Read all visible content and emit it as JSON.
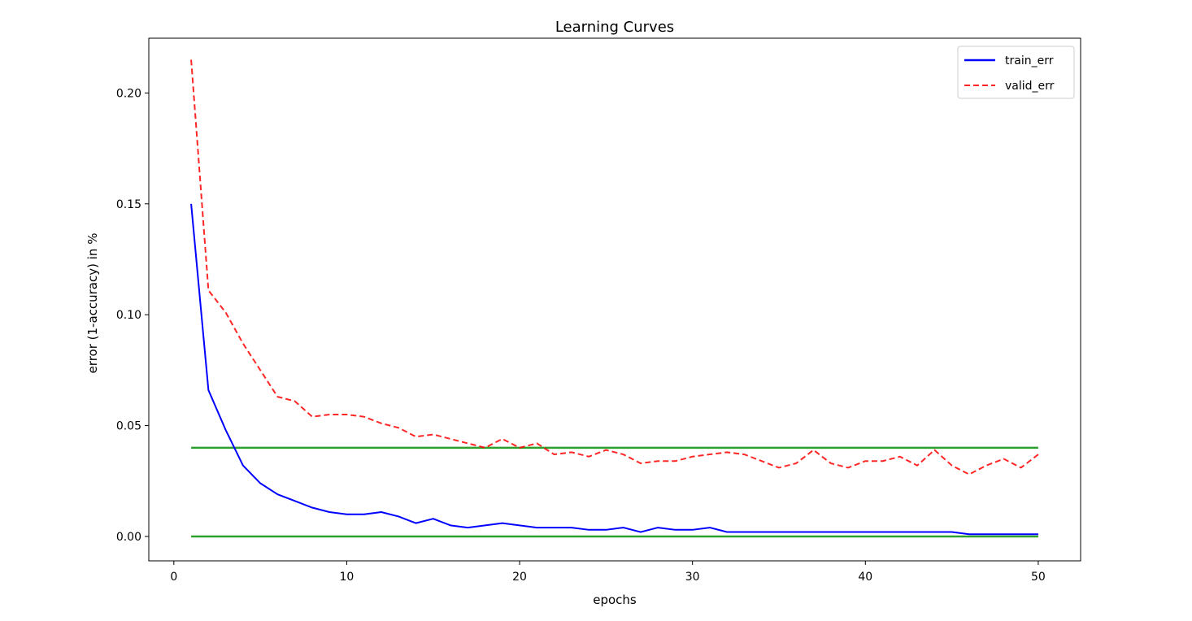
{
  "chart_data": {
    "type": "line",
    "title": "Learning Curves",
    "xlabel": "epochs",
    "ylabel": "error (1-accuracy) in %",
    "xlim": [
      -1.45,
      52.45
    ],
    "ylim": [
      -0.011,
      0.2247
    ],
    "xticks": [
      0,
      10,
      20,
      30,
      40,
      50
    ],
    "xtick_labels": [
      "0",
      "10",
      "20",
      "30",
      "40",
      "50"
    ],
    "yticks": [
      0.0,
      0.05,
      0.1,
      0.15,
      0.2
    ],
    "ytick_labels": [
      "0.00",
      "0.05",
      "0.10",
      "0.15",
      "0.20"
    ],
    "grid": false,
    "legend_position": "top-right",
    "x": [
      1,
      2,
      3,
      4,
      5,
      6,
      7,
      8,
      9,
      10,
      11,
      12,
      13,
      14,
      15,
      16,
      17,
      18,
      19,
      20,
      21,
      22,
      23,
      24,
      25,
      26,
      27,
      28,
      29,
      30,
      31,
      32,
      33,
      34,
      35,
      36,
      37,
      38,
      39,
      40,
      41,
      42,
      43,
      44,
      45,
      46,
      47,
      48,
      49,
      50
    ],
    "series": [
      {
        "name": "train_err",
        "color": "#0000ff",
        "style": "solid",
        "values": [
          0.15,
          0.066,
          0.048,
          0.032,
          0.024,
          0.019,
          0.016,
          0.013,
          0.011,
          0.01,
          0.01,
          0.011,
          0.009,
          0.006,
          0.008,
          0.005,
          0.004,
          0.005,
          0.006,
          0.005,
          0.004,
          0.004,
          0.004,
          0.003,
          0.003,
          0.004,
          0.002,
          0.004,
          0.003,
          0.003,
          0.004,
          0.002,
          0.002,
          0.002,
          0.002,
          0.002,
          0.002,
          0.002,
          0.002,
          0.002,
          0.002,
          0.002,
          0.002,
          0.002,
          0.002,
          0.001,
          0.001,
          0.001,
          0.001,
          0.001
        ]
      },
      {
        "name": "valid_err",
        "color": "#ff0000",
        "style": "dashed",
        "values": [
          0.215,
          0.111,
          0.101,
          0.087,
          0.075,
          0.063,
          0.061,
          0.054,
          0.055,
          0.055,
          0.054,
          0.051,
          0.049,
          0.045,
          0.046,
          0.044,
          0.042,
          0.04,
          0.044,
          0.04,
          0.042,
          0.037,
          0.038,
          0.036,
          0.039,
          0.037,
          0.033,
          0.034,
          0.034,
          0.036,
          0.037,
          0.038,
          0.037,
          0.034,
          0.031,
          0.033,
          0.039,
          0.033,
          0.031,
          0.034,
          0.034,
          0.036,
          0.032,
          0.039,
          0.032,
          0.028,
          0.032,
          0.035,
          0.031,
          0.037
        ]
      }
    ],
    "reference_lines": [
      {
        "y": 0.04,
        "x_start": 1,
        "x_end": 50,
        "color": "#2ca02c"
      },
      {
        "y": 0.0,
        "x_start": 1,
        "x_end": 50,
        "color": "#2ca02c"
      }
    ]
  }
}
